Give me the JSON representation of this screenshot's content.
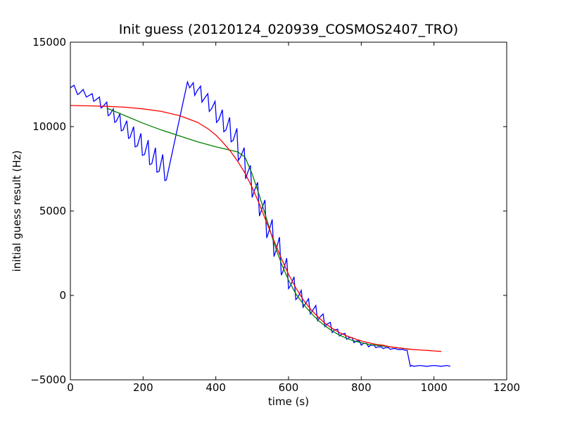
{
  "chart_data": {
    "type": "line",
    "title": "Init guess (20120124_020939_COSMOS2407_TRO)",
    "xlabel": "time (s)",
    "ylabel": "initial guess result (Hz)",
    "xlim": [
      0,
      1200
    ],
    "ylim": [
      -5000,
      15000
    ],
    "xticks": [
      0,
      200,
      400,
      600,
      800,
      1000,
      1200
    ],
    "yticks": [
      -5000,
      0,
      5000,
      10000,
      15000
    ],
    "grid": false,
    "legend": "none",
    "series": [
      {
        "color": "#0000ff",
        "x": [
          0,
          10,
          20,
          24,
          35,
          44,
          48,
          60,
          64,
          68,
          80,
          84,
          88,
          100,
          104,
          108,
          118,
          122,
          126,
          136,
          140,
          145,
          155,
          160,
          164,
          174,
          178,
          184,
          194,
          198,
          204,
          214,
          218,
          224,
          234,
          238,
          244,
          254,
          260,
          264,
          322,
          328,
          338,
          342,
          348,
          358,
          362,
          368,
          378,
          382,
          388,
          398,
          402,
          408,
          418,
          422,
          428,
          438,
          442,
          448,
          458,
          462,
          468,
          478,
          482,
          488,
          495,
          500,
          506,
          515,
          520,
          526,
          535,
          540,
          546,
          555,
          560,
          566,
          575,
          580,
          586,
          595,
          600,
          606,
          615,
          620,
          626,
          635,
          640,
          646,
          655,
          660,
          666,
          675,
          680,
          686,
          695,
          700,
          706,
          715,
          720,
          726,
          735,
          740,
          746,
          755,
          760,
          766,
          775,
          780,
          786,
          795,
          800,
          806,
          815,
          820,
          826,
          835,
          840,
          846,
          855,
          860,
          866,
          875,
          880,
          886,
          895,
          900,
          906,
          915,
          920,
          926,
          935,
          938,
          945,
          960,
          980,
          1000,
          1020,
          1035,
          1045
        ],
        "y": [
          12300,
          12450,
          11900,
          11950,
          12200,
          11750,
          11800,
          11950,
          11500,
          11550,
          11750,
          11100,
          11150,
          11450,
          10650,
          10700,
          11050,
          10250,
          10300,
          10750,
          9750,
          9800,
          10350,
          9300,
          9350,
          10000,
          8800,
          8850,
          9600,
          8300,
          8350,
          9200,
          7750,
          7800,
          8750,
          7300,
          7350,
          8350,
          6800,
          6850,
          12650,
          12300,
          12600,
          11850,
          12100,
          12400,
          11450,
          11650,
          11950,
          10900,
          11050,
          11500,
          10250,
          10400,
          11000,
          9700,
          9800,
          10550,
          9100,
          9200,
          9900,
          8000,
          8200,
          8750,
          6900,
          7300,
          7700,
          5800,
          6200,
          6700,
          4700,
          5100,
          5650,
          3400,
          3800,
          4500,
          2300,
          2700,
          3450,
          1200,
          1500,
          2200,
          400,
          600,
          1100,
          -250,
          -100,
          300,
          -700,
          -500,
          -200,
          -1100,
          -900,
          -600,
          -1500,
          -1300,
          -1100,
          -1850,
          -1700,
          -1600,
          -2200,
          -2050,
          -2000,
          -2400,
          -2300,
          -2250,
          -2600,
          -2500,
          -2500,
          -2800,
          -2700,
          -2700,
          -2950,
          -2850,
          -2850,
          -3050,
          -2950,
          -2950,
          -3100,
          -3050,
          -3050,
          -3150,
          -3100,
          -3100,
          -3200,
          -3150,
          -3150,
          -3200,
          -3200,
          -3200,
          -3250,
          -3250,
          -4200,
          -4150,
          -4200,
          -4150,
          -4200,
          -4150,
          -4200,
          -4150,
          -4200
        ]
      },
      {
        "color": "#008000",
        "x": [
          100,
          150,
          200,
          250,
          300,
          350,
          400,
          430,
          460,
          480,
          500,
          520,
          540,
          560,
          580,
          600,
          620,
          640,
          660,
          680,
          700,
          720,
          740,
          760,
          780,
          800,
          820,
          840,
          860,
          880,
          900,
          920,
          935
        ],
        "y": [
          11100,
          10650,
          10200,
          9800,
          9450,
          9100,
          8800,
          8650,
          8500,
          8200,
          7200,
          5900,
          4500,
          3100,
          1900,
          900,
          100,
          -500,
          -1000,
          -1450,
          -1800,
          -2100,
          -2350,
          -2550,
          -2700,
          -2800,
          -2900,
          -2950,
          -3000,
          -3050,
          -3100,
          -3150,
          -3200
        ]
      },
      {
        "color": "#ff0000",
        "x": [
          0,
          50,
          100,
          150,
          200,
          250,
          300,
          350,
          380,
          400,
          420,
          440,
          460,
          480,
          500,
          520,
          540,
          560,
          580,
          600,
          620,
          640,
          660,
          680,
          700,
          720,
          740,
          760,
          780,
          800,
          820,
          840,
          860,
          880,
          900,
          920,
          940,
          960,
          980,
          1000,
          1020
        ],
        "y": [
          11250,
          11230,
          11200,
          11150,
          11050,
          10900,
          10650,
          10250,
          9850,
          9500,
          9050,
          8550,
          7950,
          7250,
          6400,
          5400,
          4300,
          3250,
          2200,
          1250,
          450,
          -250,
          -800,
          -1250,
          -1650,
          -1950,
          -2200,
          -2400,
          -2550,
          -2700,
          -2800,
          -2900,
          -2950,
          -3050,
          -3100,
          -3150,
          -3200,
          -3230,
          -3260,
          -3290,
          -3320
        ]
      }
    ]
  }
}
